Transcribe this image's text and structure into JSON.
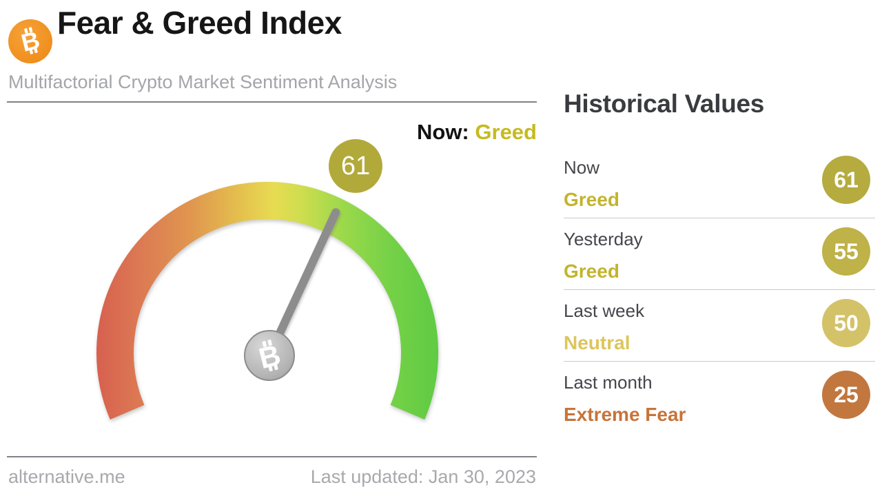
{
  "header": {
    "title": "Fear & Greed Index",
    "subtitle": "Multifactorial Crypto Market Sentiment Analysis",
    "logo_icon": "bitcoin-icon"
  },
  "gauge": {
    "now_prefix": "Now:",
    "now_classification": "Greed",
    "value": 61,
    "min": 0,
    "max": 100,
    "start_angle_deg": 203,
    "span_deg": 226,
    "colors": {
      "badge": "#b2a93b",
      "classification_text": "#c6ba1f",
      "scale_left_red": "#d7604f",
      "scale_mid_yellow": "#e7dc51",
      "scale_right_green": "#5fcb43",
      "needle_gray": "#9a9a9a"
    }
  },
  "historical": {
    "title": "Historical Values",
    "rows": [
      {
        "label": "Now",
        "classification": "Greed",
        "value": 61,
        "badge_color": "#b5ab3f",
        "text_color": "#c3b42e"
      },
      {
        "label": "Yesterday",
        "classification": "Greed",
        "value": 55,
        "badge_color": "#beb248",
        "text_color": "#c3b42e"
      },
      {
        "label": "Last week",
        "classification": "Neutral",
        "value": 50,
        "badge_color": "#d3c268",
        "text_color": "#ddc55c"
      },
      {
        "label": "Last month",
        "classification": "Extreme Fear",
        "value": 25,
        "badge_color": "#c2773f",
        "text_color": "#c7743a"
      }
    ]
  },
  "footer": {
    "source": "alternative.me",
    "last_updated": "Last updated: Jan 30, 2023"
  },
  "chart_data": {
    "type": "gauge",
    "title": "Fear & Greed Index",
    "subtitle": "Multifactorial Crypto Market Sentiment Analysis",
    "value": 61,
    "classification": "Greed",
    "range": [
      0,
      100
    ],
    "gauge_span_degrees": 226,
    "color_scale": [
      "#d7604f red (0 extreme fear)",
      "#e7dc51 yellow (50 neutral)",
      "#5fcb43 green (100 extreme greed)"
    ],
    "historical": [
      {
        "period": "Now",
        "classification": "Greed",
        "value": 61
      },
      {
        "period": "Yesterday",
        "classification": "Greed",
        "value": 55
      },
      {
        "period": "Last week",
        "classification": "Neutral",
        "value": 50
      },
      {
        "period": "Last month",
        "classification": "Extreme Fear",
        "value": 25
      }
    ],
    "source": "alternative.me",
    "last_updated": "Jan 30, 2023"
  }
}
